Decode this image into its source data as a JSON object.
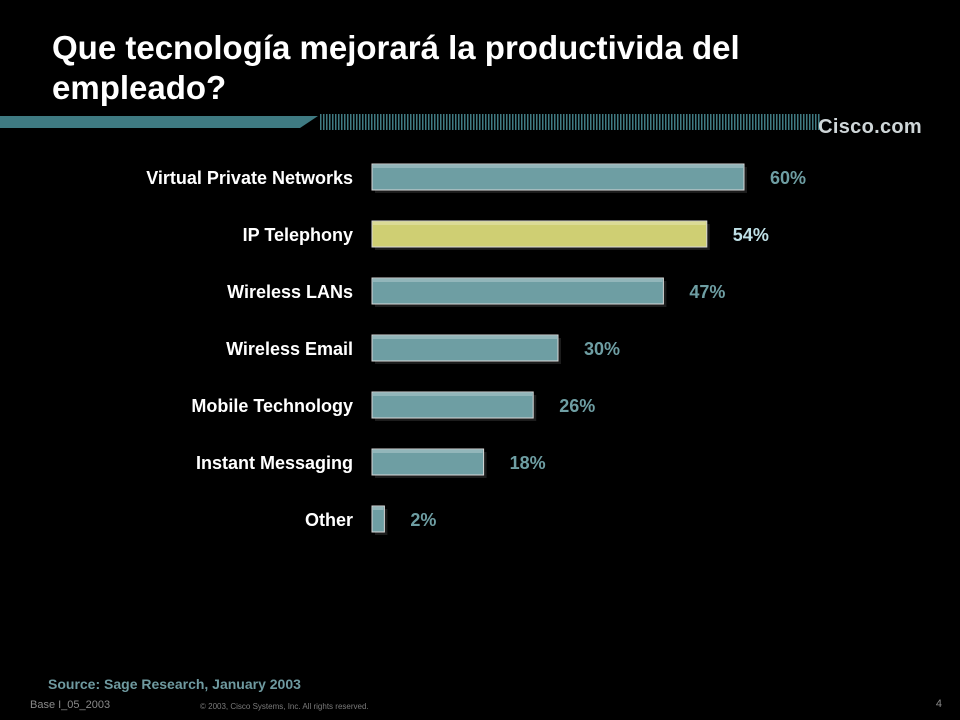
{
  "slide": {
    "title": "Que tecnología mejorará la productivida del empleado?",
    "brand": "Cisco.com",
    "source": "Source: Sage Research, January 2003",
    "footer_left": "Base I_05_2003",
    "footer_copy": "© 2003, Cisco Systems, Inc. All rights reserved.",
    "page_number": "4"
  },
  "colors": {
    "bar": "#6e9ea3",
    "bar_highlight": "#cfcf73",
    "value_label": "#6e9ea3",
    "value_label_highlight": "#bfe0e6",
    "band": "#3f7a82"
  },
  "chart_data": {
    "type": "bar",
    "orientation": "horizontal",
    "title": "Que tecnología mejorará la productivida del empleado?",
    "xlabel": "",
    "ylabel": "",
    "xlim": [
      0,
      100
    ],
    "grid": false,
    "highlight_index": 1,
    "categories": [
      "Virtual Private Networks",
      "IP Telephony",
      "Wireless LANs",
      "Wireless Email",
      "Mobile Technology",
      "Instant Messaging",
      "Other"
    ],
    "values": [
      60,
      54,
      47,
      30,
      26,
      18,
      2
    ],
    "value_labels": [
      "60%",
      "54%",
      "47%",
      "30%",
      "26%",
      "18%",
      "2%"
    ]
  }
}
